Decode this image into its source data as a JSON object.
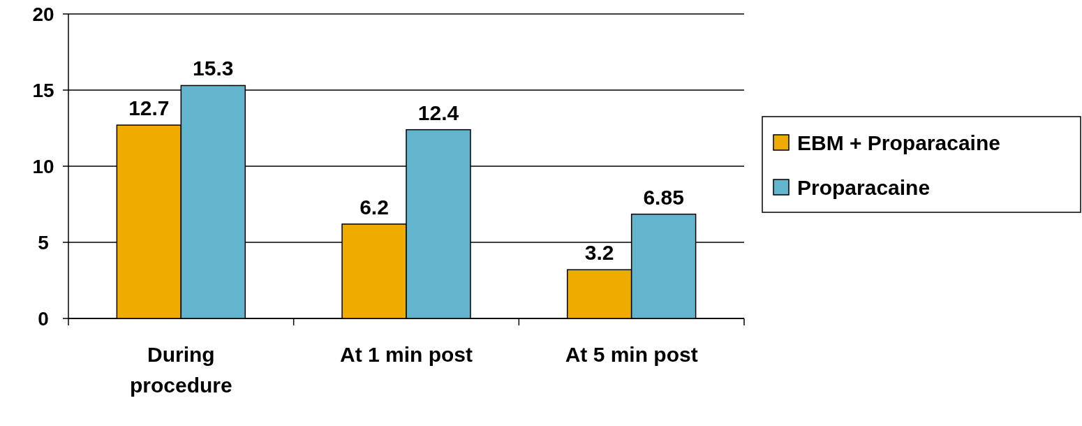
{
  "chart_data": {
    "type": "bar",
    "categories": [
      "During procedure",
      "At 1 min post",
      "At 5 min post"
    ],
    "series": [
      {
        "name": "EBM + Proparacaine",
        "color": "#f0ab00",
        "values": [
          12.7,
          6.2,
          3.2
        ]
      },
      {
        "name": "Proparacaine",
        "color": "#62b5cd",
        "values": [
          15.3,
          12.4,
          6.85
        ]
      }
    ],
    "ylim": [
      0,
      20
    ],
    "yticks": [
      0,
      5,
      10,
      15,
      20
    ],
    "grid": "y",
    "legend": "right",
    "data_labels": true
  }
}
